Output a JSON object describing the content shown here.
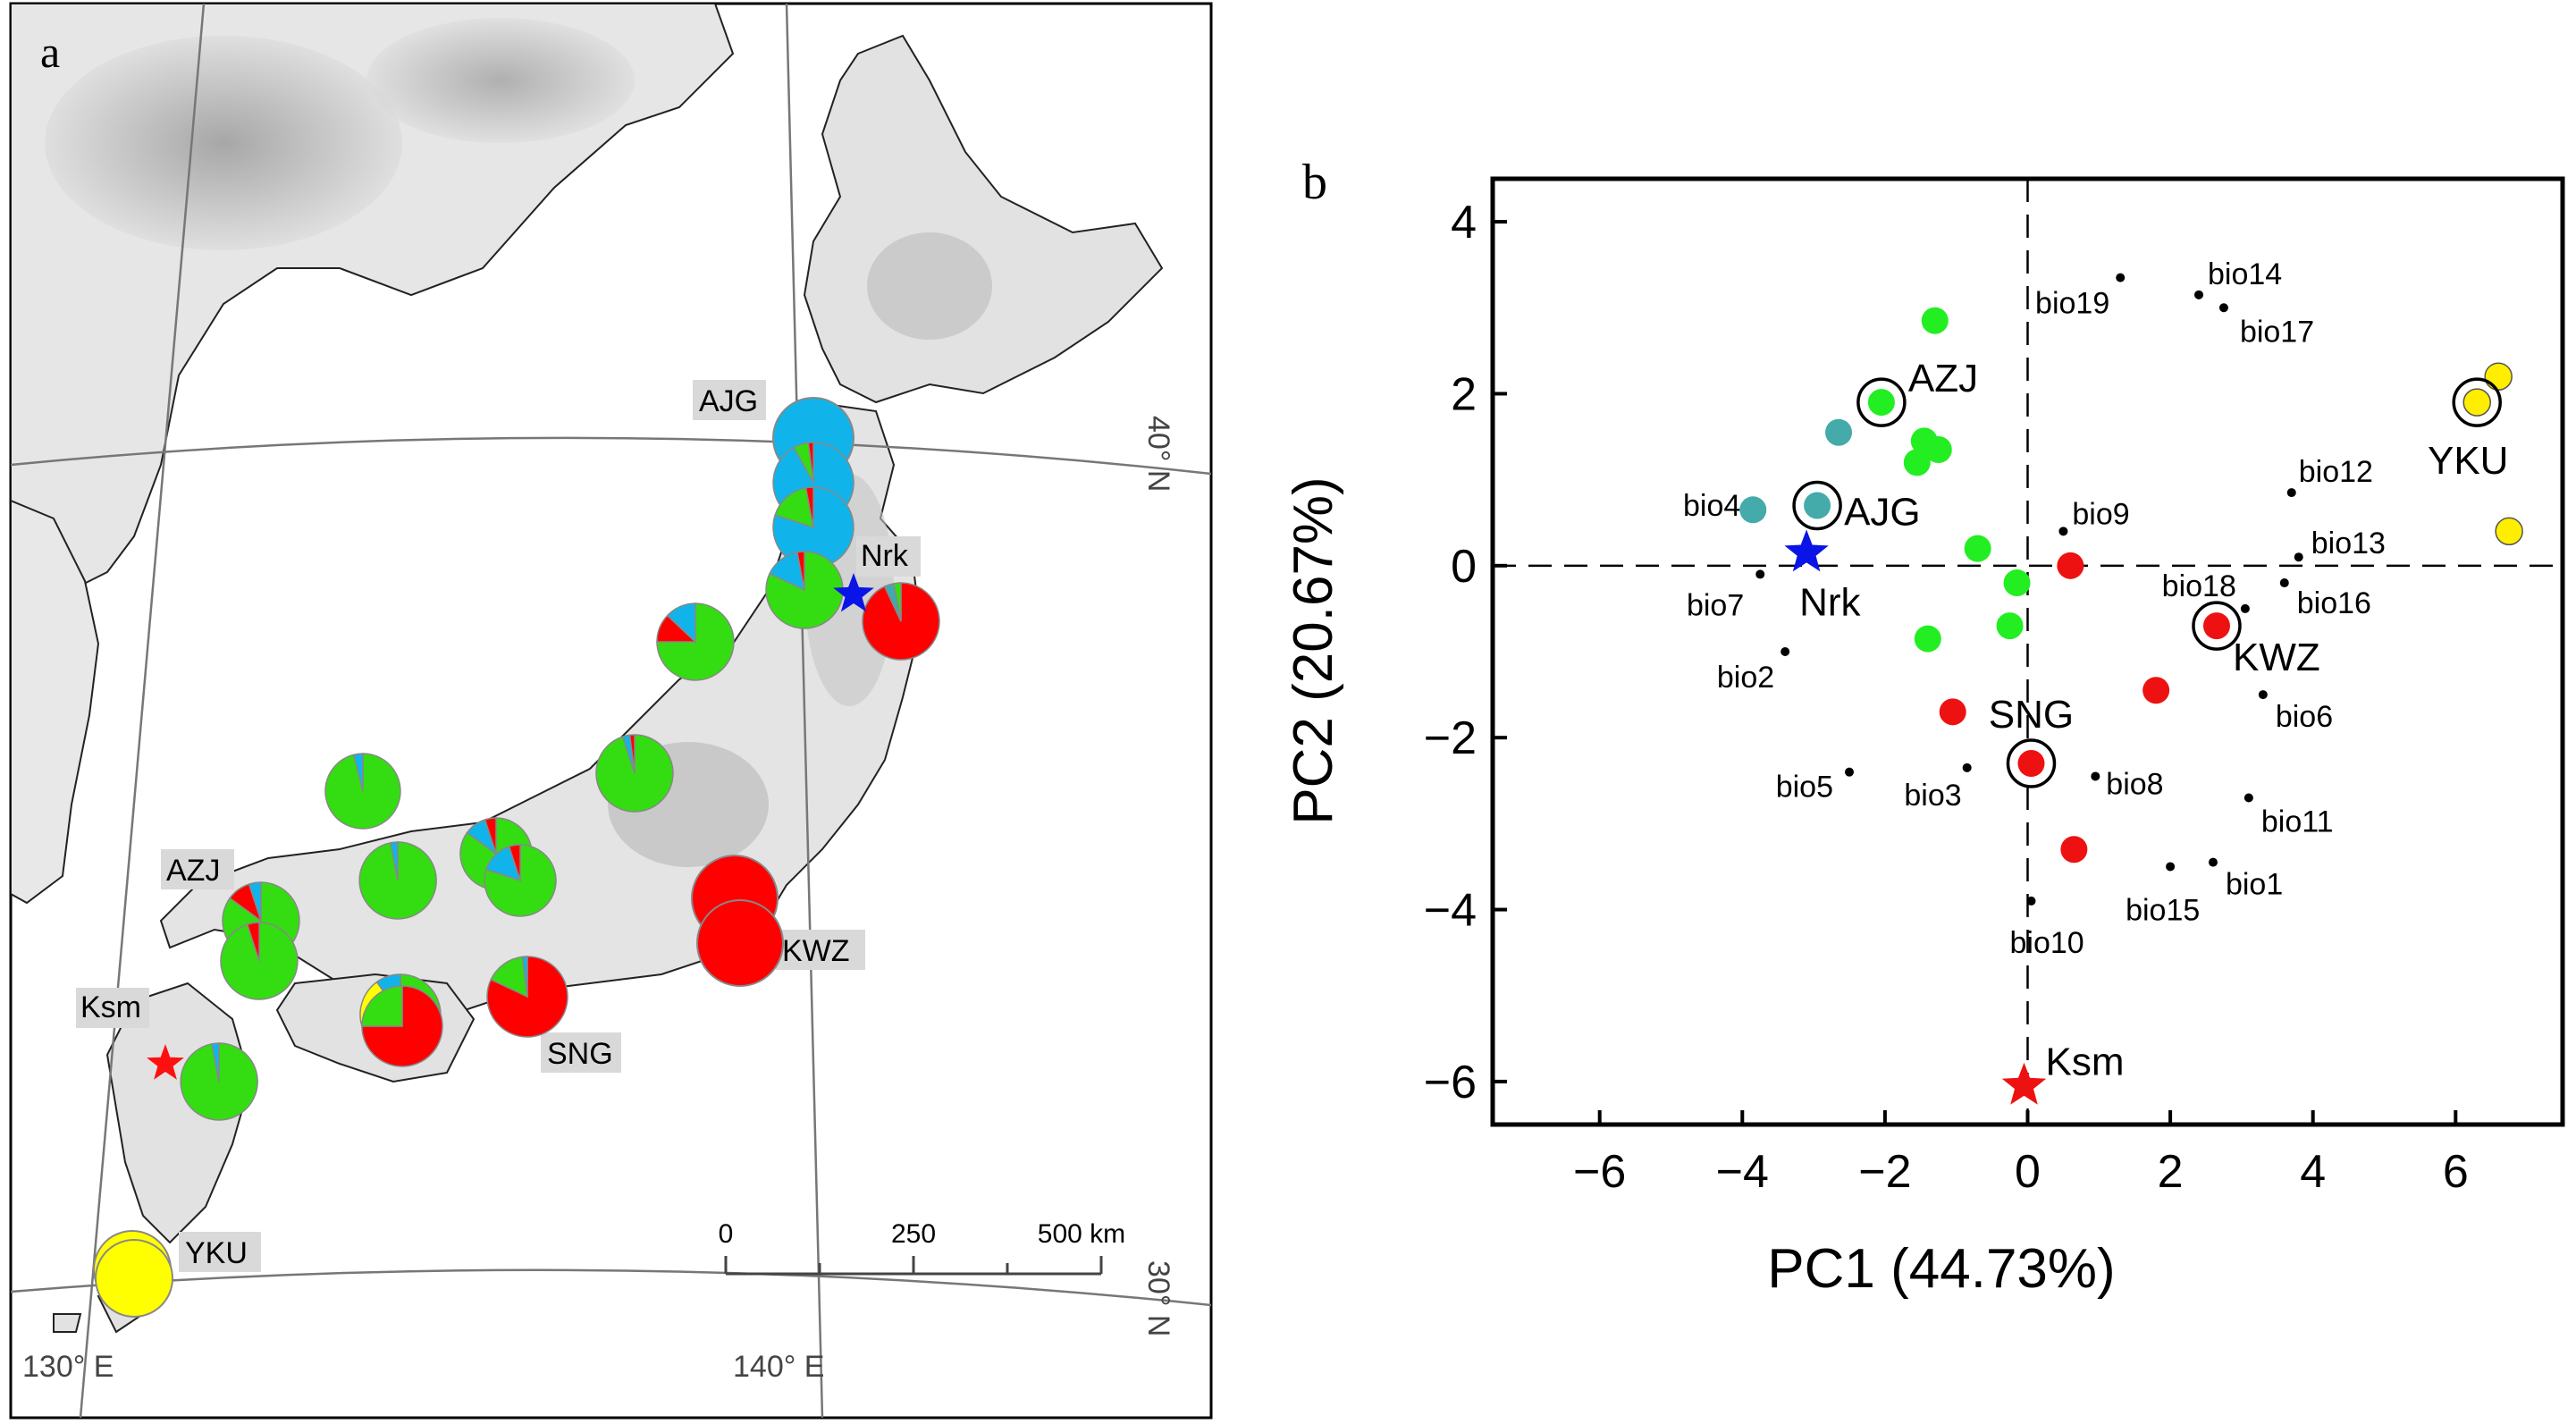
{
  "panels": {
    "a": {
      "label": "a"
    },
    "b": {
      "label": "b"
    }
  },
  "map": {
    "lat_labels": [
      "40° N",
      "30° N"
    ],
    "lon_labels": [
      "130° E",
      "140° E"
    ],
    "scale": {
      "ticks": [
        "0",
        "250",
        "500 km"
      ]
    },
    "site_labels": [
      "AJG",
      "AZJ",
      "SNG",
      "KWZ",
      "YKU"
    ],
    "star_labels": [
      "Nrk",
      "Ksm"
    ],
    "colors": {
      "green": "#33dd11",
      "blue": "#11b4ea",
      "red": "#ff0000",
      "yellow": "#ffff00",
      "teal": "#3fa9b0"
    },
    "pies": [
      {
        "name": "ajg-1",
        "shares": [
          {
            "c": "blue",
            "v": 1.0
          }
        ]
      },
      {
        "name": "ajg-2",
        "shares": [
          {
            "c": "blue",
            "v": 0.92
          },
          {
            "c": "green",
            "v": 0.06
          },
          {
            "c": "red",
            "v": 0.02
          }
        ]
      },
      {
        "name": "ajg-3",
        "shares": [
          {
            "c": "blue",
            "v": 0.8
          },
          {
            "c": "green",
            "v": 0.17
          },
          {
            "c": "red",
            "v": 0.03
          }
        ]
      },
      {
        "name": "nrk-pie",
        "shares": [
          {
            "c": "green",
            "v": 0.82
          },
          {
            "c": "blue",
            "v": 0.15
          },
          {
            "c": "red",
            "v": 0.03
          }
        ]
      },
      {
        "name": "east-red",
        "shares": [
          {
            "c": "red",
            "v": 0.93
          },
          {
            "c": "teal",
            "v": 0.04
          },
          {
            "c": "green",
            "v": 0.03
          }
        ]
      },
      {
        "name": "sado",
        "shares": [
          {
            "c": "green",
            "v": 0.75
          },
          {
            "c": "red",
            "v": 0.12
          },
          {
            "c": "blue",
            "v": 0.13
          }
        ]
      },
      {
        "name": "central-1",
        "shares": [
          {
            "c": "green",
            "v": 0.95
          },
          {
            "c": "blue",
            "v": 0.03
          },
          {
            "c": "red",
            "v": 0.02
          }
        ]
      },
      {
        "name": "kwz-1",
        "shares": [
          {
            "c": "red",
            "v": 1.0
          }
        ]
      },
      {
        "name": "kwz-2",
        "shares": [
          {
            "c": "red",
            "v": 1.0
          }
        ]
      },
      {
        "name": "kinki-1",
        "shares": [
          {
            "c": "green",
            "v": 0.85
          },
          {
            "c": "blue",
            "v": 0.1
          },
          {
            "c": "red",
            "v": 0.05
          }
        ]
      },
      {
        "name": "kinki-2",
        "shares": [
          {
            "c": "green",
            "v": 0.8
          },
          {
            "c": "blue",
            "v": 0.15
          },
          {
            "c": "red",
            "v": 0.05
          }
        ]
      },
      {
        "name": "chugoku-1",
        "shares": [
          {
            "c": "green",
            "v": 0.96
          },
          {
            "c": "blue",
            "v": 0.04
          }
        ]
      },
      {
        "name": "chugoku-2",
        "shares": [
          {
            "c": "green",
            "v": 0.97
          },
          {
            "c": "blue",
            "v": 0.03
          }
        ]
      },
      {
        "name": "azj-1",
        "shares": [
          {
            "c": "green",
            "v": 0.85
          },
          {
            "c": "red",
            "v": 0.1
          },
          {
            "c": "blue",
            "v": 0.05
          }
        ]
      },
      {
        "name": "azj-2",
        "shares": [
          {
            "c": "green",
            "v": 0.95
          },
          {
            "c": "red",
            "v": 0.05
          }
        ]
      },
      {
        "name": "sng-pie",
        "shares": [
          {
            "c": "red",
            "v": 0.82
          },
          {
            "c": "green",
            "v": 0.16
          },
          {
            "c": "blue",
            "v": 0.02
          }
        ]
      },
      {
        "name": "shikoku-1",
        "shares": [
          {
            "c": "green",
            "v": 0.6
          },
          {
            "c": "red",
            "v": 0.1
          },
          {
            "c": "yellow",
            "v": 0.2
          },
          {
            "c": "blue",
            "v": 0.1
          }
        ]
      },
      {
        "name": "shikoku-2",
        "shares": [
          {
            "c": "red",
            "v": 0.75
          },
          {
            "c": "green",
            "v": 0.25
          }
        ]
      },
      {
        "name": "kyushu-1",
        "shares": [
          {
            "c": "green",
            "v": 0.97
          },
          {
            "c": "blue",
            "v": 0.03
          }
        ]
      },
      {
        "name": "yku-1",
        "shares": [
          {
            "c": "yellow",
            "v": 1.0
          }
        ]
      },
      {
        "name": "yku-2",
        "shares": [
          {
            "c": "yellow",
            "v": 1.0
          }
        ]
      }
    ]
  },
  "chart_data": {
    "type": "scatter",
    "xlabel": "PC1 (44.73%)",
    "ylabel": "PC2 (20.67%)",
    "xlim": [
      -7.5,
      7.5
    ],
    "ylim": [
      -6.5,
      4.5
    ],
    "xticks": [
      -6,
      -4,
      -2,
      0,
      2,
      4,
      6
    ],
    "yticks": [
      -6,
      -4,
      -2,
      0,
      2,
      4
    ],
    "reference_lines": {
      "x": 0,
      "y": 0,
      "style": "dashed"
    },
    "points": [
      {
        "x": 6.6,
        "y": 2.2,
        "color": "yellow",
        "circled": false
      },
      {
        "x": 6.3,
        "y": 1.9,
        "color": "yellow",
        "circled": true,
        "label": "YKU"
      },
      {
        "x": 6.75,
        "y": 0.4,
        "color": "yellow",
        "circled": false
      },
      {
        "x": -1.3,
        "y": 2.85,
        "color": "green",
        "circled": false
      },
      {
        "x": -2.05,
        "y": 1.9,
        "color": "green",
        "circled": true,
        "label": "AZJ"
      },
      {
        "x": -1.45,
        "y": 1.45,
        "color": "green",
        "circled": false
      },
      {
        "x": -1.25,
        "y": 1.35,
        "color": "green",
        "circled": false
      },
      {
        "x": -1.55,
        "y": 1.2,
        "color": "green",
        "circled": false
      },
      {
        "x": -0.7,
        "y": 0.2,
        "color": "green",
        "circled": false
      },
      {
        "x": -0.15,
        "y": -0.2,
        "color": "green",
        "circled": false
      },
      {
        "x": -0.25,
        "y": -0.7,
        "color": "green",
        "circled": false
      },
      {
        "x": -1.4,
        "y": -0.85,
        "color": "green",
        "circled": false
      },
      {
        "x": -2.65,
        "y": 1.55,
        "color": "teal",
        "circled": false
      },
      {
        "x": -2.95,
        "y": 0.7,
        "color": "teal",
        "circled": true,
        "label": "AJG"
      },
      {
        "x": -3.85,
        "y": 0.65,
        "color": "teal",
        "circled": false
      },
      {
        "x": 0.6,
        "y": 0.0,
        "color": "red",
        "circled": false
      },
      {
        "x": 2.65,
        "y": -0.7,
        "color": "red",
        "circled": true,
        "label": "KWZ"
      },
      {
        "x": 1.8,
        "y": -1.45,
        "color": "red",
        "circled": false
      },
      {
        "x": -1.05,
        "y": -1.7,
        "color": "red",
        "circled": false
      },
      {
        "x": 0.05,
        "y": -2.3,
        "color": "red",
        "circled": true,
        "label": "SNG"
      },
      {
        "x": 0.65,
        "y": -3.3,
        "color": "red",
        "circled": false
      }
    ],
    "stars": [
      {
        "x": -3.1,
        "y": 0.15,
        "color": "blue",
        "label": "Nrk"
      },
      {
        "x": -0.05,
        "y": -6.05,
        "color": "red",
        "label": "Ksm"
      }
    ],
    "vectors": [
      {
        "name": "bio14",
        "x": 2.4,
        "y": 3.15
      },
      {
        "name": "bio19",
        "x": 1.3,
        "y": 3.35
      },
      {
        "name": "bio17",
        "x": 2.75,
        "y": 3.0
      },
      {
        "name": "bio12",
        "x": 3.7,
        "y": 0.85
      },
      {
        "name": "bio9",
        "x": 0.5,
        "y": 0.4
      },
      {
        "name": "bio13",
        "x": 3.8,
        "y": 0.1
      },
      {
        "name": "bio4",
        "x": -3.85,
        "y": 0.6
      },
      {
        "name": "bio7",
        "x": -3.75,
        "y": -0.1
      },
      {
        "name": "bio18",
        "x": 3.05,
        "y": -0.5
      },
      {
        "name": "bio16",
        "x": 3.6,
        "y": -0.2
      },
      {
        "name": "bio2",
        "x": -3.4,
        "y": -1.0
      },
      {
        "name": "bio6",
        "x": 3.3,
        "y": -1.5
      },
      {
        "name": "bio5",
        "x": -2.5,
        "y": -2.4
      },
      {
        "name": "bio3",
        "x": -0.85,
        "y": -2.35
      },
      {
        "name": "bio8",
        "x": 0.95,
        "y": -2.45
      },
      {
        "name": "bio11",
        "x": 3.1,
        "y": -2.7
      },
      {
        "name": "bio15",
        "x": 2.0,
        "y": -3.5
      },
      {
        "name": "bio1",
        "x": 2.6,
        "y": -3.45
      },
      {
        "name": "bio10",
        "x": 0.05,
        "y": -3.9
      }
    ]
  }
}
